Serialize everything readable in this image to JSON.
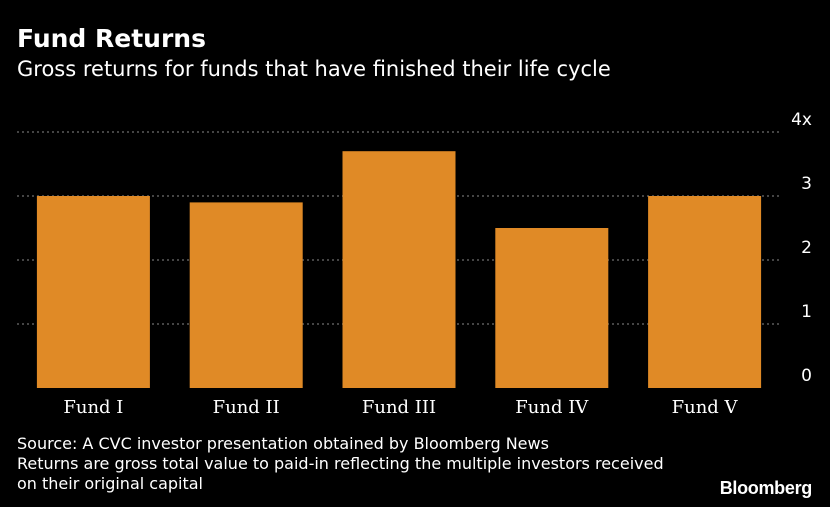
{
  "header": {
    "title": "Fund Returns",
    "subtitle": "Gross returns for funds that have finished their life cycle"
  },
  "chart_data": {
    "type": "bar",
    "categories": [
      "Fund I",
      "Fund II",
      "Fund III",
      "Fund IV",
      "Fund V"
    ],
    "values": [
      3.0,
      2.9,
      3.7,
      2.5,
      3.0
    ],
    "ylim": [
      0,
      4
    ],
    "yticks": [
      {
        "value": 0,
        "label": "0"
      },
      {
        "value": 1,
        "label": "1"
      },
      {
        "value": 2,
        "label": "2"
      },
      {
        "value": 3,
        "label": "3"
      },
      {
        "value": 4,
        "label": "4x"
      }
    ],
    "grid": true,
    "y_axis_side": "right",
    "bar_color": "#e08a26",
    "grid_color": "#8a8a8a"
  },
  "footer": {
    "source": "Source: A CVC investor presentation obtained by Bloomberg News",
    "note_line1": "Returns are gross total value to paid-in reflecting the multiple investors received",
    "note_line2": "on their original capital"
  },
  "brand": "Bloomberg"
}
